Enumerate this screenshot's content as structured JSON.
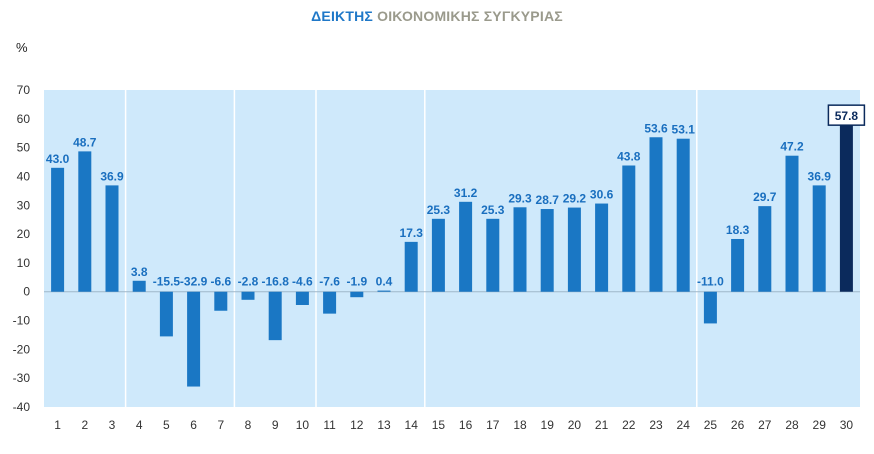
{
  "title_part1": "ΔΕΙΚΤΗΣ",
  "title_part2": "ΟΙΚΟΝΟΜΙΚΗΣ ΣΥΓΚΥΡΙΑΣ",
  "unit": "%",
  "colors": {
    "background": "#cfe9fb",
    "bar": "#1a77c4",
    "bar_highlight": "#0b2a5c",
    "label": "#1a6fbf",
    "title_accent": "#1f78c8",
    "title_rest": "#9a9a8c"
  },
  "chart_data": {
    "type": "bar",
    "categories": [
      "1",
      "2",
      "3",
      "4",
      "5",
      "6",
      "7",
      "8",
      "9",
      "10",
      "11",
      "12",
      "13",
      "14",
      "15",
      "16",
      "17",
      "18",
      "19",
      "20",
      "21",
      "22",
      "23",
      "24",
      "25",
      "26",
      "27",
      "28",
      "29",
      "30"
    ],
    "values": [
      43.0,
      48.7,
      36.9,
      3.8,
      -15.5,
      -32.9,
      -6.6,
      -2.8,
      -16.8,
      -4.6,
      -7.6,
      -1.9,
      0.4,
      17.3,
      25.3,
      31.2,
      25.3,
      29.3,
      28.7,
      29.2,
      30.6,
      43.8,
      53.6,
      53.1,
      -11.0,
      18.3,
      29.7,
      47.2,
      36.9,
      57.8
    ],
    "labels": [
      "43.0",
      "48.7",
      "36.9",
      "3.8",
      "-15.5",
      "-32.9",
      "-6.6",
      "-2.8",
      "-16.8",
      "-4.6",
      "-7.6",
      "-1.9",
      "0.4",
      "17.3",
      "25.3",
      "31.2",
      "25.3",
      "29.3",
      "28.7",
      "29.2",
      "30.6",
      "43.8",
      "53.6",
      "53.1",
      "-11.0",
      "18.3",
      "29.7",
      "47.2",
      "36.9",
      "57.8"
    ],
    "highlight_index": 29,
    "ylim": [
      -40,
      70
    ],
    "yticks": [
      "-40",
      "-30",
      "-20",
      "-10",
      "0",
      "10",
      "20",
      "30",
      "40",
      "50",
      "60",
      "70"
    ],
    "section_dividers_after": [
      3,
      7,
      10,
      14,
      24
    ],
    "grid": false
  }
}
